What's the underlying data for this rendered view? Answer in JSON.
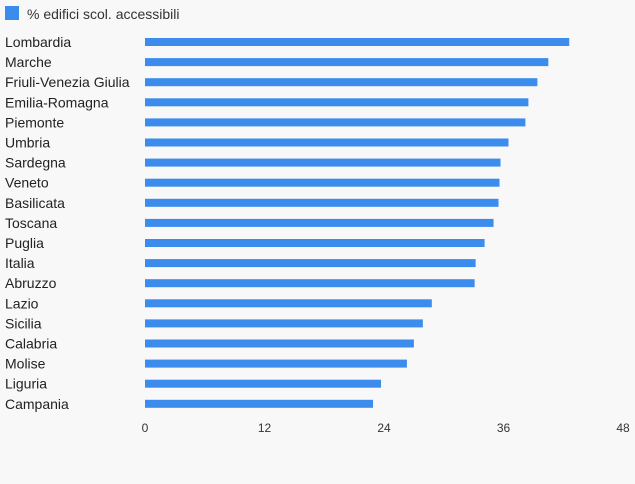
{
  "chart_data": {
    "type": "bar",
    "orientation": "horizontal",
    "categories": [
      "Lombardia",
      "Marche",
      "Friuli-Venezia Giulia",
      "Emilia-Romagna",
      "Piemonte",
      "Umbria",
      "Sardegna",
      "Veneto",
      "Basilicata",
      "Toscana",
      "Puglia",
      "Italia",
      "Abruzzo",
      "Lazio",
      "Sicilia",
      "Calabria",
      "Molise",
      "Liguria",
      "Campania"
    ],
    "series": [
      {
        "name": "% edifici scol. accessibili",
        "color": "#3b8ced",
        "values": [
          42.6,
          40.5,
          39.4,
          38.5,
          38.2,
          36.5,
          35.7,
          35.6,
          35.5,
          35.0,
          34.1,
          33.2,
          33.1,
          28.8,
          27.9,
          27.0,
          26.3,
          23.7,
          22.9
        ]
      }
    ],
    "xlim": [
      0,
      48
    ],
    "xticks": [
      "0",
      "12",
      "24",
      "36",
      "48"
    ],
    "grid": false,
    "legend_position": "top-left"
  }
}
